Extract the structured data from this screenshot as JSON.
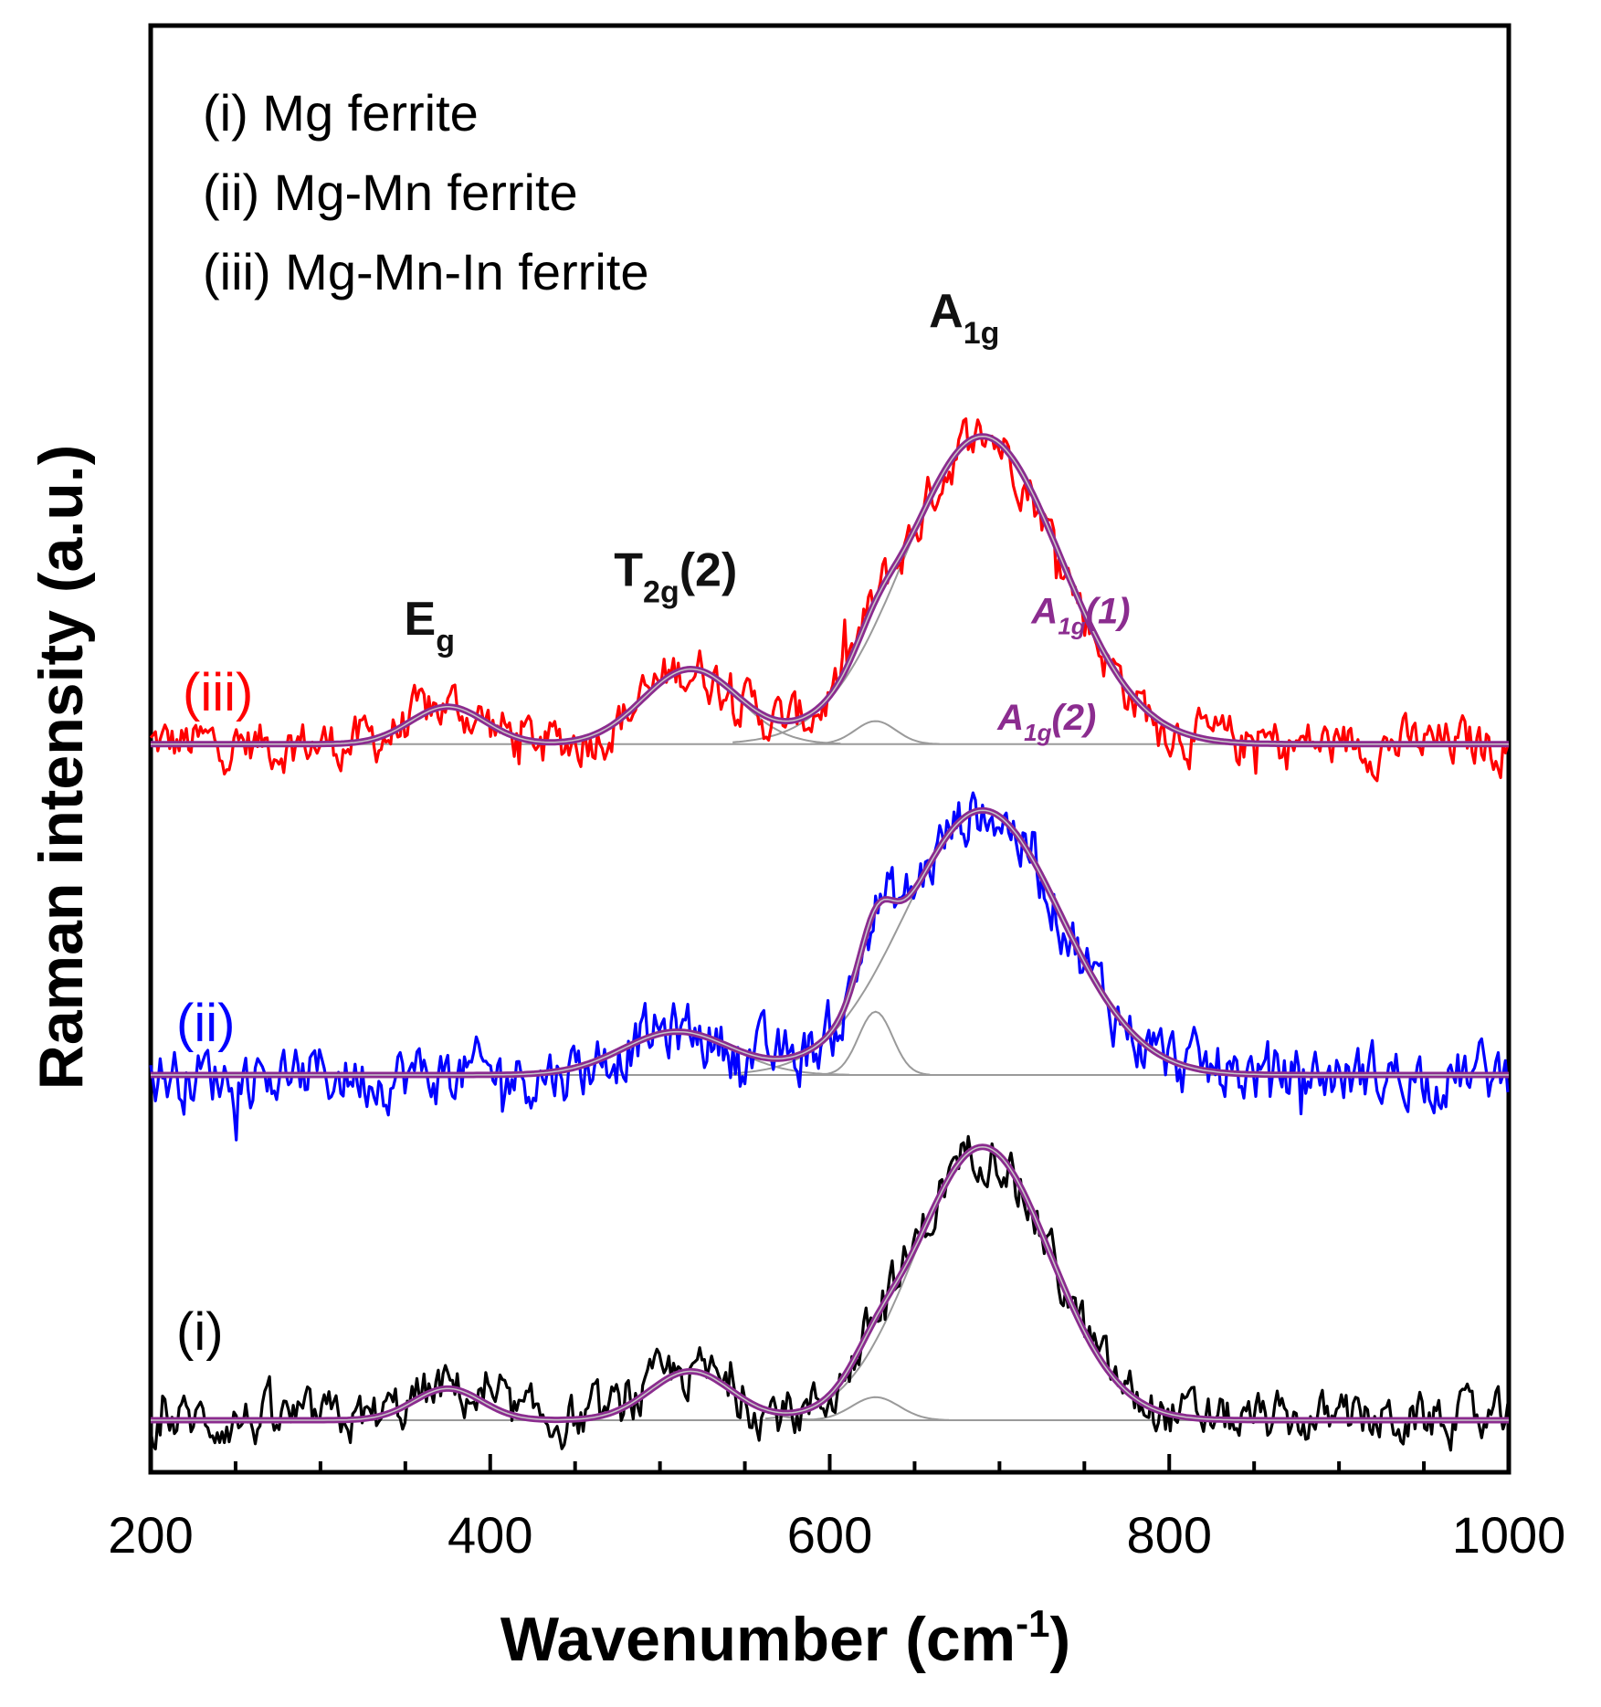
{
  "chart_data": {
    "type": "line",
    "title": "",
    "xlabel": "Wavenumber (cm",
    "xlabel_sup": "-1",
    "xlabel_close": ")",
    "ylabel": "Raman intensity (a.u.)",
    "xlim": [
      200,
      1000
    ],
    "x_ticks": [
      "200",
      "400",
      "600",
      "800",
      "1000"
    ],
    "x_tick_values": [
      200,
      400,
      600,
      800,
      1000
    ],
    "y_ticks_shown": false,
    "legend": [
      "(i) Mg ferrite",
      "(ii) Mg-Mn ferrite",
      "(iii) Mg-Mn-In ferrite"
    ],
    "fit_color": "#8b2c8f",
    "component_color": "#9a9a9a",
    "series": [
      {
        "id": "iii",
        "name": "(iii)",
        "color": "#ff0000",
        "offset": 2.35,
        "noise": 0.045,
        "fit_peaks": [
          {
            "center": 375,
            "height": 0.13,
            "width": 22
          },
          {
            "center": 518,
            "height": 0.26,
            "width": 28
          },
          {
            "center": 627,
            "height": 0.08,
            "width": 12
          },
          {
            "center": 690,
            "height": 1.07,
            "width": 46
          }
        ]
      },
      {
        "id": "ii",
        "name": "(ii)",
        "color": "#0000ff",
        "offset": 1.2,
        "noise": 0.055,
        "fit_peaks": [
          {
            "center": 510,
            "height": 0.15,
            "width": 32
          },
          {
            "center": 627,
            "height": 0.22,
            "width": 10
          },
          {
            "center": 690,
            "height": 0.92,
            "width": 46
          }
        ]
      },
      {
        "id": "i",
        "name": "(i)",
        "color": "#000000",
        "offset": 0.0,
        "noise": 0.045,
        "fit_peaks": [
          {
            "center": 375,
            "height": 0.11,
            "width": 20
          },
          {
            "center": 518,
            "height": 0.17,
            "width": 24
          },
          {
            "center": 627,
            "height": 0.08,
            "width": 14
          },
          {
            "center": 690,
            "height": 0.95,
            "width": 40
          }
        ]
      }
    ],
    "peak_labels": [
      {
        "main": "E",
        "sub": "g",
        "x": 375,
        "offset_above": 0.38
      },
      {
        "main": "T",
        "sub": "2g",
        "tail": "(2)",
        "x": 520,
        "offset_above": 0.55
      },
      {
        "main": "A",
        "sub": "1g",
        "x": 690,
        "offset_above": 1.45
      }
    ],
    "fit_labels": [
      {
        "main": "A",
        "sub": "1g",
        "tail": "(1)",
        "x": 735,
        "y_above": 0.42
      },
      {
        "main": "A",
        "sub": "1g",
        "tail": "(2)",
        "x": 715,
        "y_above": 0.05
      }
    ]
  }
}
